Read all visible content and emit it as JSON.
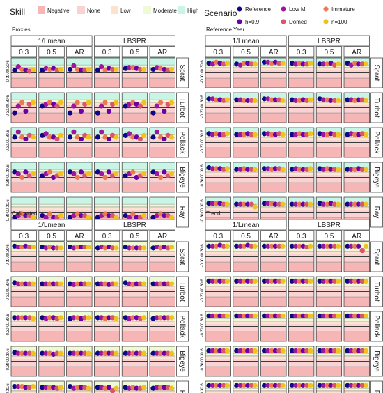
{
  "legend": {
    "skill_title": "Skill",
    "skill_items": [
      {
        "label": "Negative",
        "color": "#f7b6b6"
      },
      {
        "label": "None",
        "color": "#fad2d2"
      },
      {
        "label": "Low",
        "color": "#fbe3d2"
      },
      {
        "label": "Moderate",
        "color": "#eefad6"
      },
      {
        "label": "High",
        "color": "#c9f5e6"
      }
    ],
    "scenario_title": "Scenario",
    "scenario_items": [
      {
        "label": "Reference",
        "color": "#0d0887"
      },
      {
        "label": "Low M",
        "color": "#9c179e"
      },
      {
        "label": "Immature",
        "color": "#ed7953"
      },
      {
        "label": "h=0.9",
        "color": "#6a00a8"
      },
      {
        "label": "Domed",
        "color": "#d8576b"
      },
      {
        "label": "n=100",
        "color": "#f0c21f"
      }
    ]
  },
  "chart_data": [
    {
      "type": "scatter",
      "title": "Proxies",
      "groups": [
        "1/Lmean",
        "LBSPR"
      ],
      "columns": [
        "0.3",
        "0.5",
        "AR",
        "0.3",
        "0.5",
        "AR"
      ],
      "rows": [
        "Sprat",
        "Turbot",
        "Pollack",
        "Bigeye",
        "Ray"
      ],
      "ytick_labels": [
        "0.6",
        "0.3",
        "0.0",
        "-0.3"
      ],
      "ylim": [
        -0.85,
        0.85
      ],
      "values": [
        [
          [
            0.15,
            0.35,
            0.2,
            0.15,
            0.1,
            0.15
          ],
          [
            0.15,
            0.25,
            0.2,
            0.25,
            0.15,
            0.2
          ],
          [
            0.2,
            0.4,
            0.2,
            0.15,
            0.15,
            0.2
          ],
          [
            0.15,
            0.35,
            0.15,
            0.25,
            0.2,
            0.2
          ],
          [
            0.25,
            0.3,
            0.3,
            0.25,
            0.2,
            0.2
          ],
          [
            0.2,
            0.3,
            0.25,
            0.2,
            0.15,
            0.2
          ]
        ],
        [
          [
            -0.3,
            0.1,
            0.3,
            -0.2,
            0.2,
            0.3
          ],
          [
            0.1,
            0.2,
            0.3,
            0.2,
            0.1,
            0.3
          ],
          [
            -0.3,
            0.1,
            0.3,
            -0.2,
            0.2,
            0.3
          ],
          [
            -0.3,
            0.1,
            0.3,
            -0.2,
            0.2,
            0.3
          ],
          [
            0.1,
            0.2,
            0.3,
            0.2,
            0.1,
            0.3
          ],
          [
            -0.3,
            0.1,
            0.3,
            -0.2,
            0.2,
            0.3
          ]
        ],
        [
          [
            0.3,
            0.6,
            0.3,
            0.2,
            0.4,
            0.3
          ],
          [
            0.4,
            0.5,
            0.3,
            0.3,
            0.2,
            0.4
          ],
          [
            0.3,
            0.6,
            0.3,
            0.2,
            0.4,
            0.3
          ],
          [
            0.3,
            0.6,
            0.3,
            0.2,
            0.4,
            0.3
          ],
          [
            0.4,
            0.5,
            0.3,
            0.3,
            0.2,
            0.4
          ],
          [
            0.3,
            0.6,
            0.3,
            0.2,
            0.4,
            0.3
          ]
        ],
        [
          [
            0.3,
            0.2,
            0.0,
            0.3,
            0.1,
            0.2
          ],
          [
            0.1,
            0.2,
            0.3,
            0.0,
            0.1,
            0.2
          ],
          [
            0.3,
            0.2,
            0.0,
            0.3,
            0.1,
            0.2
          ],
          [
            0.3,
            0.2,
            0.0,
            0.3,
            0.1,
            0.2
          ],
          [
            0.1,
            0.2,
            0.3,
            0.0,
            0.1,
            0.2
          ],
          [
            0.3,
            0.2,
            0.0,
            0.3,
            0.1,
            0.2
          ]
        ],
        [
          [
            -0.3,
            -0.2,
            -0.1,
            -0.2,
            -0.2,
            -0.3
          ],
          [
            -0.2,
            -0.3,
            -0.1,
            -0.3,
            -0.3,
            -0.2
          ],
          [
            -0.3,
            -0.2,
            -0.1,
            -0.2,
            -0.2,
            -0.3
          ],
          [
            -0.3,
            -0.2,
            -0.1,
            -0.2,
            -0.2,
            -0.3
          ],
          [
            -0.2,
            -0.3,
            -0.1,
            -0.3,
            -0.3,
            -0.2
          ],
          [
            -0.3,
            -0.2,
            -0.1,
            -0.2,
            -0.2,
            -0.3
          ]
        ]
      ]
    },
    {
      "type": "scatter",
      "title": "Reference Year",
      "groups": [
        "1/Lmean",
        "LBSPR"
      ],
      "columns": [
        "0.3",
        "0.5",
        "AR",
        "0.3",
        "0.5",
        "AR"
      ],
      "rows": [
        "Sprat",
        "Turbot",
        "Pollack",
        "Bigeye",
        "Ray"
      ],
      "ytick_labels": [
        "0.6",
        "0.3",
        "0.0",
        "-0.3"
      ],
      "ylim": [
        -0.85,
        0.85
      ],
      "values": [
        [
          [
            0.55,
            0.5,
            0.6,
            0.55,
            0.5,
            0.55
          ],
          [
            0.5,
            0.45,
            0.55,
            0.55,
            0.5,
            0.5
          ],
          [
            0.6,
            0.6,
            0.55,
            0.6,
            0.55,
            0.55
          ],
          [
            0.55,
            0.5,
            0.55,
            0.5,
            0.5,
            0.55
          ],
          [
            0.5,
            0.5,
            0.5,
            0.55,
            0.45,
            0.5
          ],
          [
            0.55,
            0.45,
            0.55,
            0.5,
            0.5,
            0.5
          ]
        ],
        [
          [
            0.5,
            0.5,
            0.45,
            0.45,
            0.4,
            0.45
          ],
          [
            0.45,
            0.45,
            0.4,
            0.4,
            0.4,
            0.4
          ],
          [
            0.5,
            0.5,
            0.45,
            0.45,
            0.45,
            0.4
          ],
          [
            0.45,
            0.4,
            0.4,
            0.45,
            0.4,
            0.45
          ],
          [
            0.5,
            0.45,
            0.45,
            0.4,
            0.4,
            0.4
          ],
          [
            0.45,
            0.45,
            0.4,
            0.45,
            0.45,
            0.4
          ]
        ],
        [
          [
            0.5,
            0.45,
            0.5,
            0.45,
            0.45,
            0.5
          ],
          [
            0.45,
            0.45,
            0.45,
            0.5,
            0.45,
            0.45
          ],
          [
            0.5,
            0.5,
            0.45,
            0.45,
            0.5,
            0.45
          ],
          [
            0.45,
            0.45,
            0.5,
            0.45,
            0.45,
            0.5
          ],
          [
            0.5,
            0.45,
            0.45,
            0.5,
            0.45,
            0.45
          ],
          [
            0.45,
            0.5,
            0.45,
            0.45,
            0.5,
            0.45
          ]
        ],
        [
          [
            0.55,
            0.5,
            0.5,
            0.5,
            0.45,
            0.5
          ],
          [
            0.45,
            0.45,
            0.5,
            0.45,
            0.45,
            0.45
          ],
          [
            0.5,
            0.5,
            0.45,
            0.5,
            0.5,
            0.45
          ],
          [
            0.45,
            0.5,
            0.45,
            0.45,
            0.45,
            0.5
          ],
          [
            0.5,
            0.45,
            0.5,
            0.45,
            0.45,
            0.45
          ],
          [
            0.45,
            0.45,
            0.45,
            0.5,
            0.45,
            0.45
          ]
        ],
        [
          [
            0.5,
            0.5,
            0.5,
            0.5,
            0.45,
            0.45
          ],
          [
            0.45,
            0.45,
            0.45,
            0.45,
            0.45,
            0.3
          ],
          [
            0.5,
            0.5,
            0.5,
            0.45,
            0.45,
            0.45
          ],
          [
            0.45,
            0.45,
            0.45,
            0.45,
            0.45,
            0.45
          ],
          [
            0.5,
            0.45,
            0.45,
            0.5,
            0.45,
            0.45
          ],
          [
            0.45,
            0.45,
            0.45,
            0.45,
            0.45,
            0.45
          ]
        ]
      ]
    },
    {
      "type": "scatter",
      "title": "Calibrated",
      "groups": [
        "1/Lmean",
        "LBSPR"
      ],
      "columns": [
        "0.3",
        "0.5",
        "AR",
        "0.3",
        "0.5",
        "AR"
      ],
      "rows": [
        "Sprat",
        "Turbot",
        "Pollack",
        "Bigeye",
        "Ray"
      ],
      "ytick_labels": [
        "0.6",
        "0.3",
        "0.0",
        "-0.3"
      ],
      "ylim": [
        -0.85,
        0.85
      ],
      "values": [
        [
          [
            0.6,
            0.55,
            0.55,
            0.6,
            0.55,
            0.55
          ],
          [
            0.55,
            0.5,
            0.55,
            0.5,
            0.5,
            0.5
          ],
          [
            0.55,
            0.5,
            0.55,
            0.55,
            0.55,
            0.55
          ],
          [
            0.5,
            0.55,
            0.5,
            0.55,
            0.5,
            0.5
          ],
          [
            0.55,
            0.5,
            0.5,
            0.5,
            0.5,
            0.5
          ],
          [
            0.5,
            0.55,
            0.5,
            0.55,
            0.5,
            0.55
          ]
        ],
        [
          [
            0.5,
            0.45,
            0.45,
            0.45,
            0.45,
            0.45
          ],
          [
            0.45,
            0.45,
            0.45,
            0.45,
            0.45,
            0.45
          ],
          [
            0.45,
            0.4,
            0.45,
            0.45,
            0.45,
            0.45
          ],
          [
            0.45,
            0.45,
            0.45,
            0.4,
            0.45,
            0.45
          ],
          [
            0.5,
            0.45,
            0.4,
            0.45,
            0.45,
            0.45
          ],
          [
            0.45,
            0.45,
            0.45,
            0.45,
            0.45,
            0.45
          ]
        ],
        [
          [
            0.5,
            0.5,
            0.5,
            0.5,
            0.5,
            0.45
          ],
          [
            0.5,
            0.45,
            0.5,
            0.5,
            0.45,
            0.5
          ],
          [
            0.45,
            0.5,
            0.5,
            0.45,
            0.5,
            0.5
          ],
          [
            0.5,
            0.5,
            0.45,
            0.5,
            0.5,
            0.45
          ],
          [
            0.5,
            0.45,
            0.5,
            0.5,
            0.45,
            0.5
          ],
          [
            0.45,
            0.5,
            0.5,
            0.5,
            0.5,
            0.5
          ]
        ],
        [
          [
            0.5,
            0.45,
            0.45,
            0.45,
            0.45,
            0.45
          ],
          [
            0.45,
            0.45,
            0.45,
            0.4,
            0.45,
            0.45
          ],
          [
            0.45,
            0.45,
            0.45,
            0.45,
            0.45,
            0.45
          ],
          [
            0.45,
            0.45,
            0.45,
            0.45,
            0.45,
            0.45
          ],
          [
            0.45,
            0.45,
            0.45,
            0.45,
            0.45,
            0.45
          ],
          [
            0.45,
            0.45,
            0.45,
            0.45,
            0.45,
            0.45
          ]
        ],
        [
          [
            0.55,
            0.55,
            0.55,
            0.5,
            0.5,
            0.55
          ],
          [
            0.5,
            0.5,
            0.5,
            0.5,
            0.45,
            0.5
          ],
          [
            0.55,
            0.45,
            0.5,
            0.5,
            0.5,
            0.45
          ],
          [
            0.5,
            0.5,
            0.45,
            0.5,
            0.3,
            0.45
          ],
          [
            0.5,
            0.45,
            0.5,
            0.45,
            0.45,
            0.5
          ],
          [
            0.45,
            0.5,
            0.5,
            0.5,
            0.5,
            0.45
          ]
        ]
      ]
    },
    {
      "type": "scatter",
      "title": "Trend",
      "groups": [
        "1/Lmean",
        "LBSPR"
      ],
      "columns": [
        "0.3",
        "0.5",
        "AR",
        "0.3",
        "0.5",
        "AR"
      ],
      "rows": [
        "Sprat",
        "Turbot",
        "Pollack",
        "Bigeye",
        "Ray"
      ],
      "ytick_labels": [
        "0.6",
        "0.3",
        "0.0",
        "-0.3"
      ],
      "ylim": [
        -0.85,
        0.85
      ],
      "values": [
        [
          [
            0.6,
            0.6,
            0.6,
            0.65,
            0.6,
            0.6
          ],
          [
            0.6,
            0.6,
            0.6,
            0.65,
            0.6,
            0.6
          ],
          [
            0.6,
            0.6,
            0.6,
            0.6,
            0.6,
            0.6
          ],
          [
            0.6,
            0.6,
            0.6,
            0.6,
            0.55,
            0.6
          ],
          [
            0.6,
            0.6,
            0.6,
            0.6,
            0.6,
            0.6
          ],
          [
            0.6,
            0.6,
            0.6,
            0.6,
            0.35,
            0.6
          ]
        ],
        [
          [
            0.6,
            0.6,
            0.6,
            0.6,
            0.6,
            0.6
          ],
          [
            0.6,
            0.6,
            0.6,
            0.6,
            0.6,
            0.6
          ],
          [
            0.6,
            0.6,
            0.6,
            0.6,
            0.6,
            0.6
          ],
          [
            0.6,
            0.6,
            0.6,
            0.6,
            0.6,
            0.6
          ],
          [
            0.6,
            0.6,
            0.6,
            0.6,
            0.6,
            0.6
          ],
          [
            0.6,
            0.6,
            0.6,
            0.6,
            0.6,
            0.6
          ]
        ],
        [
          [
            0.6,
            0.6,
            0.6,
            0.6,
            0.6,
            0.6
          ],
          [
            0.6,
            0.6,
            0.6,
            0.6,
            0.6,
            0.6
          ],
          [
            0.6,
            0.6,
            0.6,
            0.6,
            0.6,
            0.6
          ],
          [
            0.6,
            0.6,
            0.6,
            0.6,
            0.6,
            0.6
          ],
          [
            0.6,
            0.6,
            0.6,
            0.6,
            0.6,
            0.6
          ],
          [
            0.6,
            0.6,
            0.6,
            0.6,
            0.6,
            0.6
          ]
        ],
        [
          [
            0.6,
            0.6,
            0.6,
            0.6,
            0.6,
            0.6
          ],
          [
            0.6,
            0.6,
            0.6,
            0.6,
            0.6,
            0.6
          ],
          [
            0.6,
            0.6,
            0.6,
            0.6,
            0.6,
            0.6
          ],
          [
            0.6,
            0.6,
            0.6,
            0.6,
            0.6,
            0.6
          ],
          [
            0.6,
            0.6,
            0.6,
            0.6,
            0.6,
            0.6
          ],
          [
            0.6,
            0.6,
            0.6,
            0.6,
            0.6,
            0.6
          ]
        ],
        [
          [
            0.6,
            0.6,
            0.6,
            0.6,
            0.6,
            0.6
          ],
          [
            0.6,
            0.6,
            0.6,
            0.6,
            0.6,
            0.6
          ],
          [
            0.6,
            0.6,
            0.6,
            0.6,
            0.6,
            0.6
          ],
          [
            0.6,
            0.6,
            0.6,
            0.6,
            0.6,
            0.6
          ],
          [
            0.6,
            0.6,
            0.6,
            0.6,
            0.6,
            0.6
          ],
          [
            0.6,
            0.6,
            0.6,
            0.6,
            0.6,
            0.6
          ]
        ]
      ]
    }
  ]
}
